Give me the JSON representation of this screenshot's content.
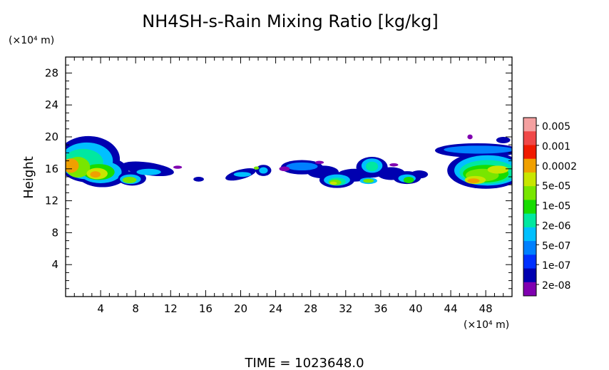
{
  "chart_data": {
    "type": "heatmap",
    "title": "NH4SH-s-Rain Mixing Ratio [kg/kg]",
    "ylabel": "Height",
    "y_unit": "(×10⁴ m)",
    "x_unit": "(×10⁴ m)",
    "xlim": [
      0,
      51
    ],
    "ylim": [
      0,
      30
    ],
    "x_ticks": [
      4,
      8,
      12,
      16,
      20,
      24,
      28,
      32,
      36,
      40,
      44,
      48
    ],
    "y_ticks": [
      4,
      8,
      12,
      16,
      20,
      24,
      28
    ],
    "footer": "TIME = 1023648.0",
    "colorbar": {
      "labels": [
        "0.005",
        "0.001",
        "0.0002",
        "5e-05",
        "1e-05",
        "2e-06",
        "5e-07",
        "1e-07",
        "2e-08"
      ],
      "colors": [
        "#f4a0a0",
        "#f04848",
        "#f01a00",
        "#f0a000",
        "#c8e600",
        "#78e600",
        "#18dc00",
        "#00e8a0",
        "#00c0ff",
        "#0080ff",
        "#0030ff",
        "#0000b0",
        "#8000b0"
      ]
    },
    "cloud_regions": [
      {
        "x": [
          0,
          6
        ],
        "y": [
          14,
          20
        ],
        "peak": "0.0002"
      },
      {
        "x": [
          7,
          12
        ],
        "y": [
          14,
          17
        ],
        "peak": "5e-05"
      },
      {
        "x": [
          15,
          16
        ],
        "y": [
          14,
          15
        ],
        "peak": "2e-08"
      },
      {
        "x": [
          18,
          24
        ],
        "y": [
          14,
          16
        ],
        "peak": "1e-05"
      },
      {
        "x": [
          26,
          45
        ],
        "y": [
          14,
          18
        ],
        "peak": "5e-05"
      },
      {
        "x": [
          46,
          51
        ],
        "y": [
          14,
          20
        ],
        "peak": "0.0002"
      }
    ]
  }
}
